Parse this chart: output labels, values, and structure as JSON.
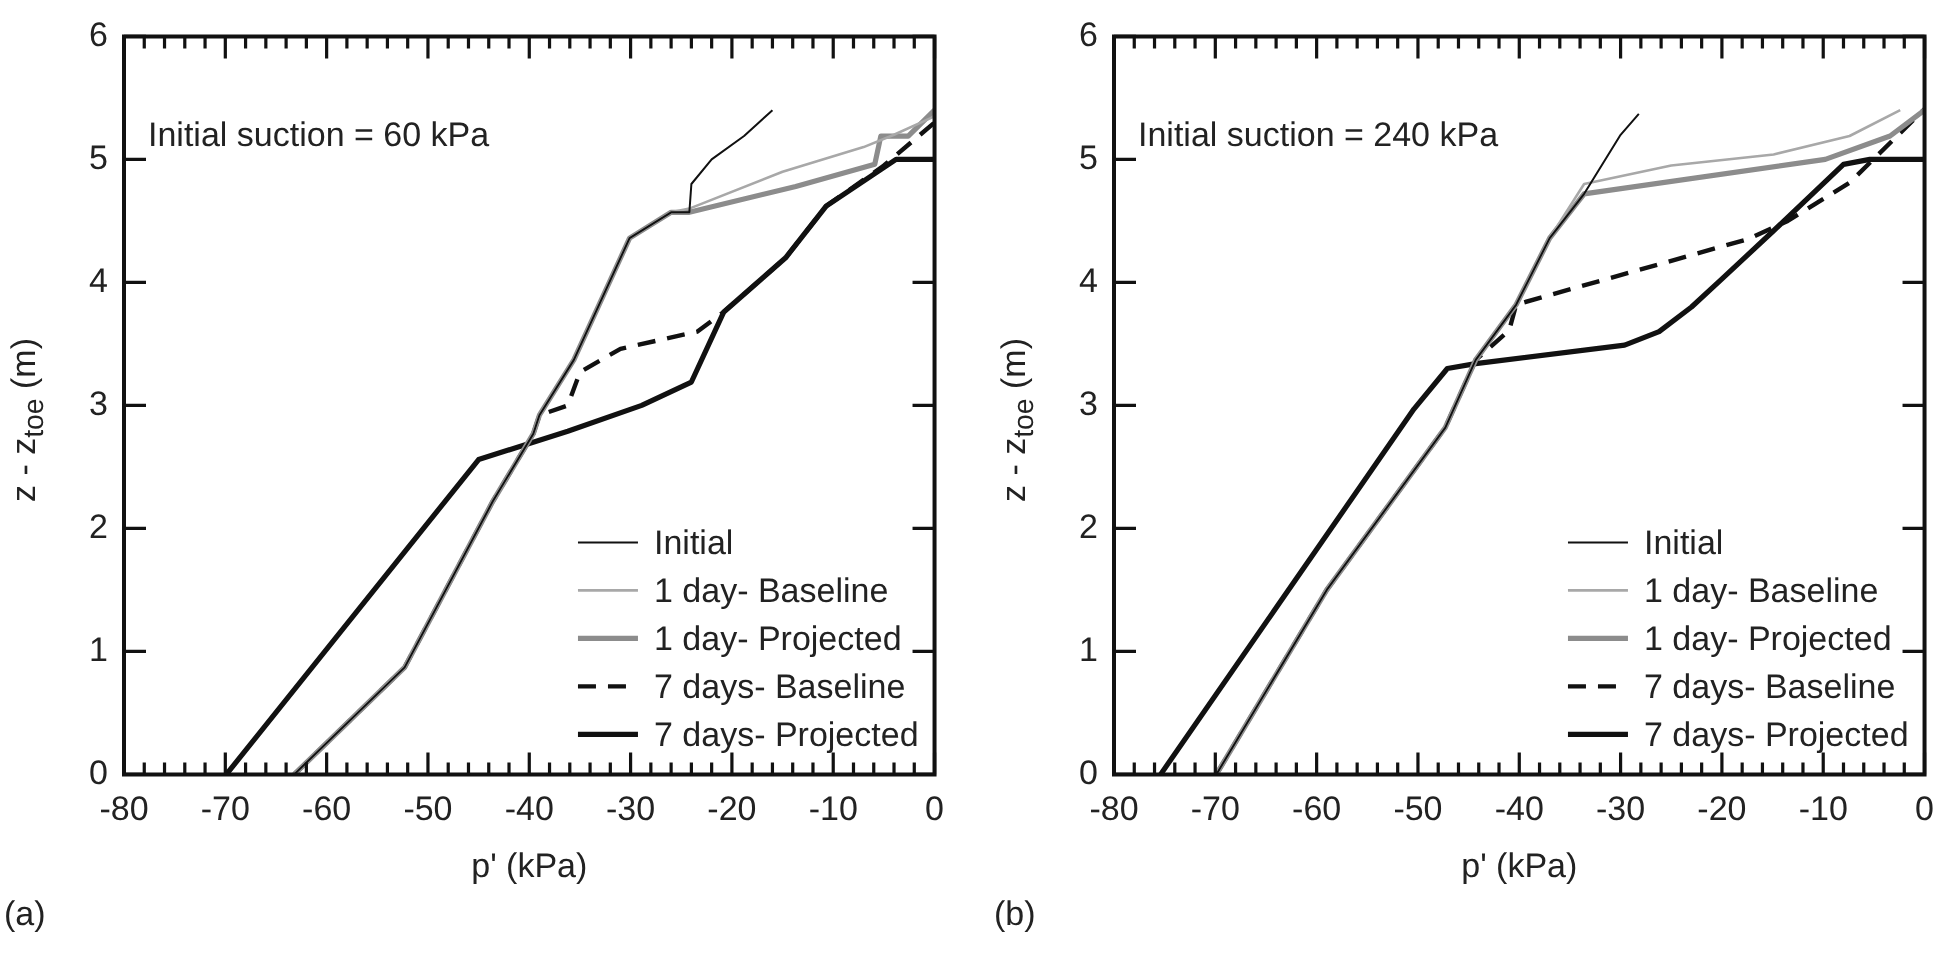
{
  "chart_data": [
    {
      "type": "line",
      "xlabel": "p' (kPa)",
      "ylabel": "z - z$_{toe}$ (m)",
      "annotations": [
        "Initial suction = 60 kPa",
        "(a)"
      ],
      "xlim": [
        -80,
        0
      ],
      "ylim": [
        0,
        6
      ],
      "xticks": [
        -80,
        {
          "value": -78,
          "label": null
        },
        {
          "value": -76,
          "label": null
        },
        {
          "value": -74,
          "label": null
        },
        {
          "value": -72,
          "label": null
        },
        -70,
        {
          "value": -68,
          "label": null
        },
        {
          "value": -66,
          "label": null
        },
        {
          "value": -64,
          "label": null
        },
        {
          "value": -62,
          "label": null
        },
        -60,
        {
          "value": -58,
          "label": null
        },
        {
          "value": -56,
          "label": null
        },
        {
          "value": -54,
          "label": null
        },
        {
          "value": -52,
          "label": null
        },
        -50,
        {
          "value": -48,
          "label": null
        },
        {
          "value": -46,
          "label": null
        },
        {
          "value": -44,
          "label": null
        },
        {
          "value": -42,
          "label": null
        },
        -40,
        {
          "value": -38,
          "label": null
        },
        {
          "value": -36,
          "label": null
        },
        {
          "value": -34,
          "label": null
        },
        {
          "value": -32,
          "label": null
        },
        -30,
        {
          "value": -28,
          "label": null
        },
        {
          "value": -26,
          "label": null
        },
        {
          "value": -24,
          "label": null
        },
        {
          "value": -22,
          "label": null
        },
        -20,
        {
          "value": -18,
          "label": null
        },
        {
          "value": -16,
          "label": null
        },
        {
          "value": -14,
          "label": null
        },
        {
          "value": -12,
          "label": null
        },
        -10,
        {
          "value": -8,
          "label": null
        },
        {
          "value": -6,
          "label": null
        },
        {
          "value": -4,
          "label": null
        },
        {
          "value": -2,
          "label": null
        },
        0
      ],
      "yticks": [
        0,
        1,
        2,
        3,
        4,
        5,
        6
      ],
      "legend": "bottom right",
      "series": [
        {
          "name": "Initial",
          "color": "#111111",
          "x": [
            -63.2,
            -52.3,
            -43.6,
            -39.6,
            -39,
            -35.6,
            -30.1,
            -26,
            -24.2,
            -24,
            -22,
            -18.8,
            -16
          ],
          "values": [
            0,
            0.87,
            2.22,
            2.77,
            2.92,
            3.37,
            4.36,
            4.57,
            4.57,
            4.8,
            5.0,
            5.19,
            5.4
          ]
        },
        {
          "name": "1 day- Baseline",
          "color": "#a8a8a8",
          "x": [
            -63.2,
            -52.3,
            -43.6,
            -39.6,
            -39,
            -35.6,
            -30.1,
            -26,
            -24.2,
            -15,
            -7,
            -4,
            0
          ],
          "values": [
            0,
            0.87,
            2.22,
            2.77,
            2.92,
            3.37,
            4.36,
            4.57,
            4.6,
            4.9,
            5.1,
            5.2,
            5.35
          ]
        },
        {
          "name": "1 day- Projected",
          "color": "#8c8c8c",
          "x": [
            -63.2,
            -52.3,
            -43.6,
            -39.6,
            -39,
            -35.6,
            -30.1,
            -26,
            -24.2,
            -13.7,
            -5.9,
            -5.3,
            -2.6,
            0
          ],
          "values": [
            0,
            0.87,
            2.22,
            2.77,
            2.92,
            3.37,
            4.36,
            4.57,
            4.57,
            4.78,
            4.96,
            5.19,
            5.19,
            5.4
          ]
        },
        {
          "name": "7 days- Baseline",
          "color": "#111111",
          "line_style": "dashed",
          "x": [
            -63.2,
            -52.3,
            -43.6,
            -39.6,
            -39,
            -36.2,
            -35,
            -31,
            -23.4,
            -20.8,
            -14.7,
            -10.7,
            -5,
            0
          ],
          "values": [
            0,
            0.87,
            2.22,
            2.77,
            2.92,
            3.0,
            3.27,
            3.46,
            3.6,
            3.76,
            4.2,
            4.62,
            4.95,
            5.3
          ]
        },
        {
          "name": "7 days- Projected",
          "color": "#111111",
          "x": [
            -69.9,
            -45,
            -36.2,
            -28.9,
            -24,
            -20.8,
            -14.7,
            -10.7,
            -3.8,
            0
          ],
          "values": [
            0,
            2.56,
            2.79,
            3.0,
            3.19,
            3.76,
            4.2,
            4.62,
            5.0,
            5.0
          ]
        }
      ]
    },
    {
      "type": "line",
      "xlabel": "p' (kPa)",
      "ylabel": "z - z$_{toe}$ (m)",
      "annotations": [
        "Initial suction = 240 kPa",
        "(b)"
      ],
      "xlim": [
        -80,
        0
      ],
      "ylim": [
        0,
        6
      ],
      "xticks": [
        -80,
        {
          "value": -78,
          "label": null
        },
        {
          "value": -76,
          "label": null
        },
        {
          "value": -74,
          "label": null
        },
        {
          "value": -72,
          "label": null
        },
        -70,
        {
          "value": -68,
          "label": null
        },
        {
          "value": -66,
          "label": null
        },
        {
          "value": -64,
          "label": null
        },
        {
          "value": -62,
          "label": null
        },
        -60,
        {
          "value": -58,
          "label": null
        },
        {
          "value": -56,
          "label": null
        },
        {
          "value": -54,
          "label": null
        },
        {
          "value": -52,
          "label": null
        },
        -50,
        {
          "value": -48,
          "label": null
        },
        {
          "value": -46,
          "label": null
        },
        {
          "value": -44,
          "label": null
        },
        {
          "value": -42,
          "label": null
        },
        -40,
        {
          "value": -38,
          "label": null
        },
        {
          "value": -36,
          "label": null
        },
        {
          "value": -34,
          "label": null
        },
        {
          "value": -32,
          "label": null
        },
        -30,
        {
          "value": -28,
          "label": null
        },
        {
          "value": -26,
          "label": null
        },
        {
          "value": -24,
          "label": null
        },
        {
          "value": -22,
          "label": null
        },
        -20,
        {
          "value": -18,
          "label": null
        },
        {
          "value": -16,
          "label": null
        },
        {
          "value": -14,
          "label": null
        },
        {
          "value": -12,
          "label": null
        },
        -10,
        {
          "value": -8,
          "label": null
        },
        {
          "value": -6,
          "label": null
        },
        {
          "value": -4,
          "label": null
        },
        {
          "value": -2,
          "label": null
        },
        0
      ],
      "yticks": [
        0,
        1,
        2,
        3,
        4,
        5,
        6
      ],
      "legend": "bottom right",
      "series": [
        {
          "name": "Initial",
          "color": "#111111",
          "x": [
            -69.9,
            -59,
            -47.3,
            -44.3,
            -40.3,
            -37,
            -33.6,
            -33,
            -30,
            -28.2
          ],
          "values": [
            0,
            1.5,
            2.82,
            3.37,
            3.82,
            4.36,
            4.72,
            4.8,
            5.2,
            5.37
          ]
        },
        {
          "name": "1 day- Baseline",
          "color": "#a8a8a8",
          "x": [
            -69.9,
            -59,
            -47.3,
            -44.3,
            -40.3,
            -37,
            -33.6,
            -25,
            -14.9,
            -7.4,
            -2.4
          ],
          "values": [
            0,
            1.5,
            2.82,
            3.37,
            3.82,
            4.36,
            4.8,
            4.95,
            5.04,
            5.19,
            5.4
          ]
        },
        {
          "name": "1 day- Projected",
          "color": "#8c8c8c",
          "x": [
            -69.9,
            -59,
            -47.3,
            -44.3,
            -40.3,
            -37,
            -33.6,
            -9.8,
            -3.4,
            0
          ],
          "values": [
            0,
            1.5,
            2.82,
            3.37,
            3.82,
            4.36,
            4.72,
            5.0,
            5.19,
            5.4
          ]
        },
        {
          "name": "7 days- Baseline",
          "color": "#111111",
          "line_style": "dashed",
          "x": [
            -69.9,
            -59,
            -47.3,
            -44.3,
            -41,
            -40.3,
            -17.5,
            -13.5,
            -7.4,
            0
          ],
          "values": [
            0,
            1.5,
            2.82,
            3.37,
            3.61,
            3.82,
            4.35,
            4.5,
            4.81,
            5.41
          ]
        },
        {
          "name": "7 days- Projected",
          "color": "#111111",
          "x": [
            -75.4,
            -50.4,
            -47.1,
            -44.3,
            -29.6,
            -26.2,
            -23,
            -20.1,
            -14.9,
            -8,
            -5.4,
            0
          ],
          "values": [
            0,
            2.97,
            3.3,
            3.34,
            3.49,
            3.6,
            3.8,
            4.02,
            4.42,
            4.96,
            5.0,
            5.0
          ]
        }
      ]
    }
  ]
}
